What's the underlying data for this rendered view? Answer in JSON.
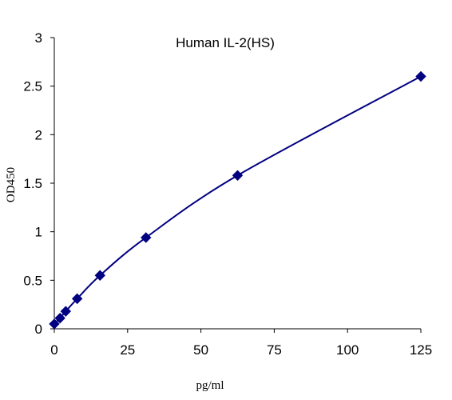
{
  "chart_data": {
    "type": "scatter",
    "title": "Human IL-2(HS)",
    "xlabel": "pg/ml",
    "ylabel": "OD450",
    "xlim": [
      0,
      125
    ],
    "ylim": [
      0,
      3
    ],
    "x_ticks": [
      0,
      25,
      50,
      75,
      100,
      125
    ],
    "y_ticks": [
      0,
      0.5,
      1,
      1.5,
      2,
      2.5,
      3
    ],
    "x_tick_labels": [
      "0",
      "25",
      "50",
      "75",
      "100",
      "125"
    ],
    "y_tick_labels": [
      "0",
      "0.5",
      "1",
      "1.5",
      "2",
      "2.5",
      "3"
    ],
    "grid": false,
    "legend": "none",
    "marker": "diamond",
    "color": "#000080",
    "fit_line": "smooth curve",
    "series": [
      {
        "x": [
          0,
          1.95,
          3.9,
          7.8,
          15.6,
          31.25,
          62.5,
          125
        ],
        "y": [
          0.05,
          0.11,
          0.18,
          0.31,
          0.55,
          0.94,
          1.58,
          2.6
        ]
      }
    ]
  }
}
